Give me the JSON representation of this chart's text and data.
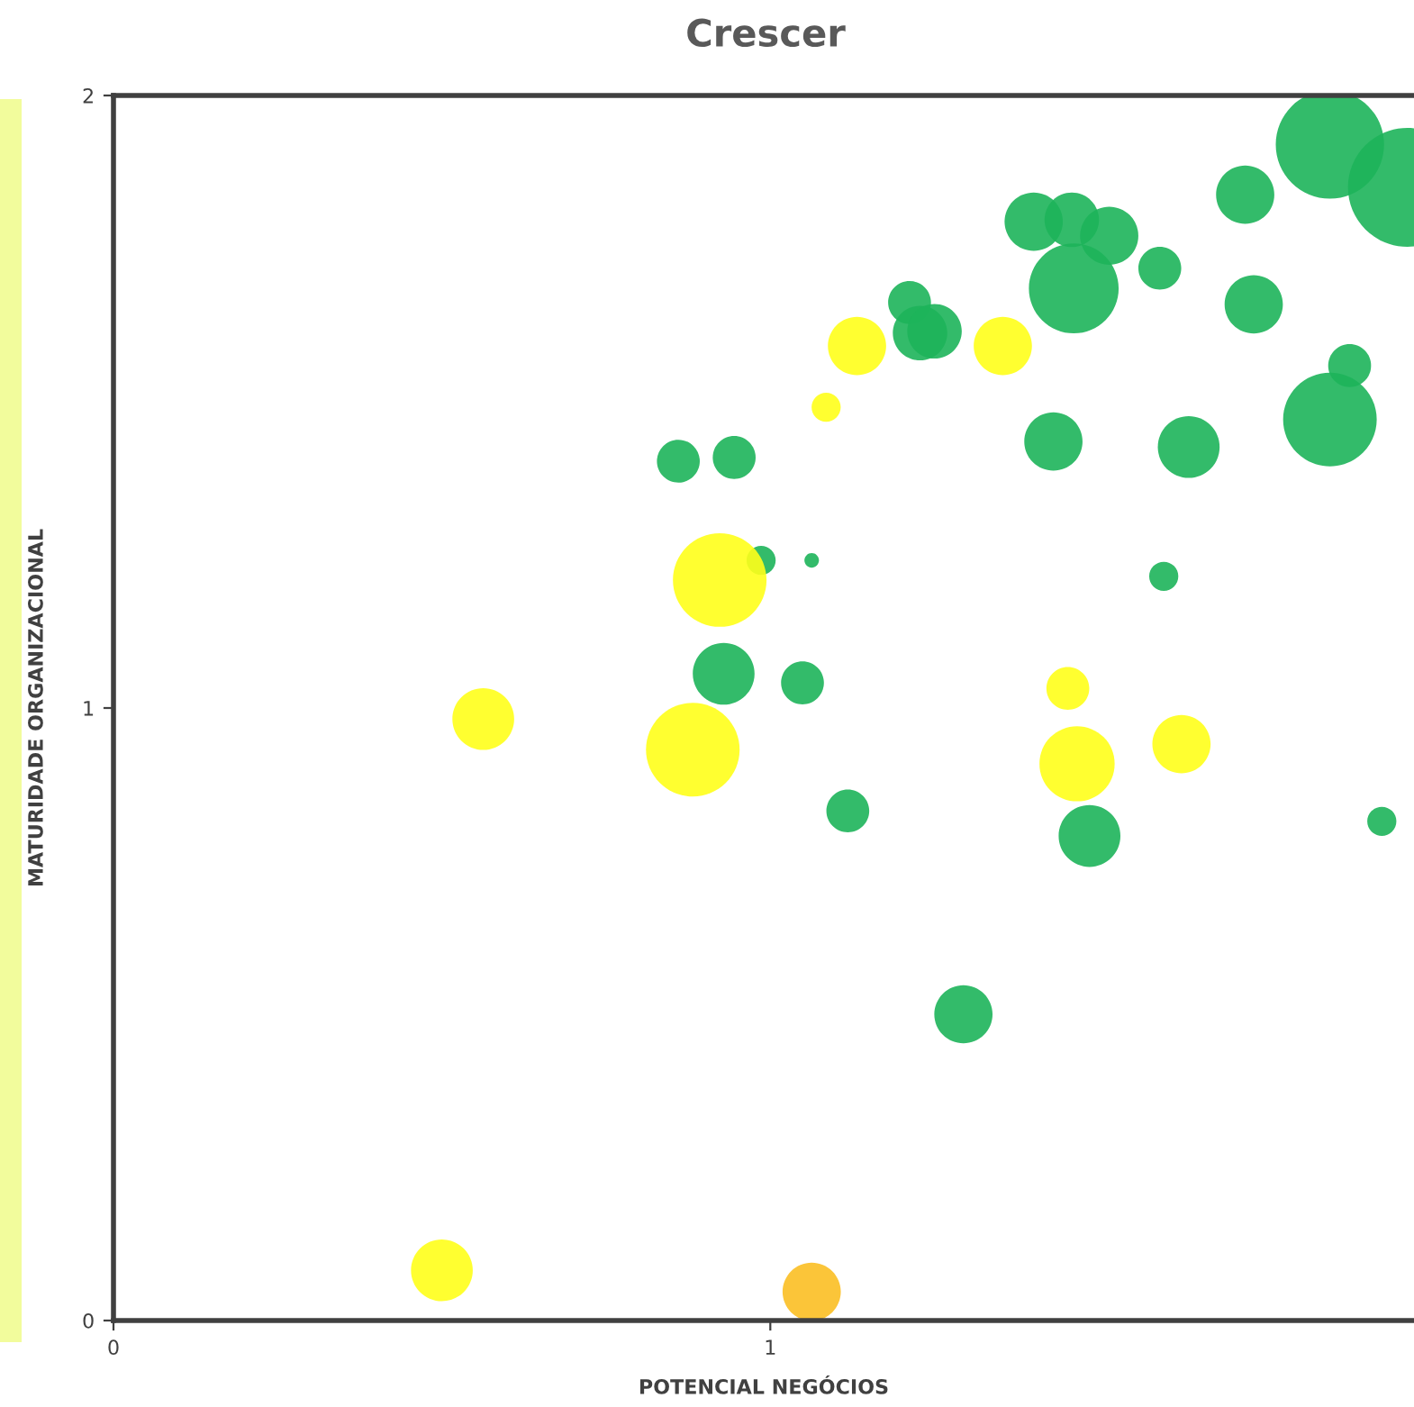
{
  "chart_data": {
    "type": "bubble",
    "title": "Crescer",
    "xlabel": "POTENCIAL NEGÓCIOS",
    "ylabel": "MATURIDADE ORGANIZACIONAL",
    "xlim": [
      0,
      1.98
    ],
    "ylim": [
      0,
      2
    ],
    "xticks": [
      0,
      1
    ],
    "yticks": [
      0,
      1,
      2
    ],
    "grid": false,
    "legend": false,
    "series": [
      {
        "color": "#1db45a",
        "x": [
          1.852,
          1.97,
          1.401,
          1.459,
          1.516,
          1.462,
          1.593,
          1.723,
          1.736,
          1.212,
          1.228,
          1.25,
          1.431,
          1.637,
          1.882,
          1.852,
          0.86,
          0.945,
          0.986,
          1.063,
          1.599,
          0.929,
          1.049,
          1.118,
          1.486,
          1.931,
          1.294
        ],
        "values": [
          1.92,
          1.85,
          1.794,
          1.797,
          1.771,
          1.685,
          1.718,
          1.838,
          1.659,
          1.662,
          1.612,
          1.615,
          1.435,
          1.426,
          1.559,
          1.471,
          1.403,
          1.409,
          1.241,
          1.241,
          1.215,
          1.056,
          1.041,
          0.832,
          0.791,
          0.815,
          0.5
        ],
        "sizes": [
          0.83,
          1,
          0.24,
          0.21,
          0.24,
          0.57,
          0.13,
          0.24,
          0.24,
          0.13,
          0.21,
          0.21,
          0.24,
          0.27,
          0.13,
          0.62,
          0.13,
          0.13,
          0.06,
          0.015,
          0.06,
          0.27,
          0.13,
          0.13,
          0.27,
          0.06,
          0.24
        ]
      },
      {
        "color": "#ffff1a",
        "x": [
          1.132,
          1.354,
          1.085,
          0.923,
          0.563,
          0.882,
          1.453,
          1.467,
          1.626,
          0.5
        ],
        "values": [
          1.591,
          1.591,
          1.491,
          1.209,
          0.982,
          0.932,
          1.032,
          0.909,
          0.941,
          0.082
        ],
        "sizes": [
          0.24,
          0.24,
          0.06,
          0.62,
          0.27,
          0.62,
          0.13,
          0.4,
          0.24,
          0.27
        ]
      },
      {
        "color": "#fbbf24",
        "x": [
          1.063
        ],
        "values": [
          0.047
        ],
        "sizes": [
          0.24
        ]
      }
    ]
  }
}
